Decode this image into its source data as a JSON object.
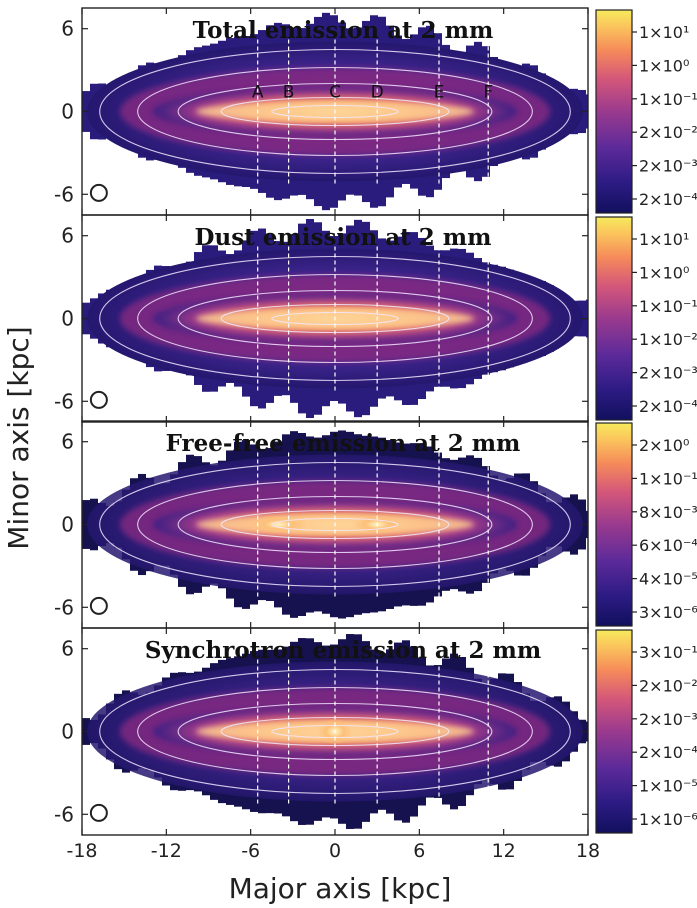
{
  "figure": {
    "xlabel": "Major axis [kpc]",
    "ylabel": "Minor axis [kpc]"
  },
  "chart_data": [
    {
      "type": "heatmap",
      "title": "Total emission at 2 mm",
      "xlim": [
        -18,
        18
      ],
      "ylim": [
        -7.5,
        7.5
      ],
      "x_ticks": [
        "-18",
        "-12",
        "-6",
        "0",
        "6",
        "12",
        "18"
      ],
      "y_ticks": [
        "6",
        "0",
        "-6"
      ],
      "colorbar_ticks": [
        "1×10¹",
        "1×10⁰",
        "1×10⁻¹",
        "2×10⁻²",
        "2×10⁻³",
        "2×10⁻⁴"
      ],
      "vertical_cuts": [
        {
          "label": "A",
          "x": -5.5
        },
        {
          "label": "B",
          "x": -3.3
        },
        {
          "label": "C",
          "x": 0
        },
        {
          "label": "D",
          "x": 3.0
        },
        {
          "label": "E",
          "x": 7.4
        },
        {
          "label": "F",
          "x": 10.9
        }
      ],
      "disk_half_length_kpc": 18,
      "peak_intensity": "central, along major axis",
      "beam_marker": "circle lower-left"
    },
    {
      "type": "heatmap",
      "title": "Dust emission at 2 mm",
      "xlim": [
        -18,
        18
      ],
      "ylim": [
        -7.5,
        7.5
      ],
      "x_ticks": [
        "-18",
        "-12",
        "-6",
        "0",
        "6",
        "12",
        "18"
      ],
      "y_ticks": [
        "6",
        "0",
        "-6"
      ],
      "colorbar_ticks": [
        "1×10¹",
        "1×10⁰",
        "1×10⁻¹",
        "1×10⁻²",
        "2×10⁻³",
        "2×10⁻⁴"
      ],
      "vertical_cuts": [
        {
          "label": "",
          "x": -5.5
        },
        {
          "label": "",
          "x": -3.3
        },
        {
          "label": "",
          "x": 0
        },
        {
          "label": "",
          "x": 3.0
        },
        {
          "label": "",
          "x": 7.4
        },
        {
          "label": "",
          "x": 10.9
        }
      ]
    },
    {
      "type": "heatmap",
      "title": "Free-free emission at 2 mm",
      "xlim": [
        -18,
        18
      ],
      "ylim": [
        -7.5,
        7.5
      ],
      "x_ticks": [
        "-18",
        "-12",
        "-6",
        "0",
        "6",
        "12",
        "18"
      ],
      "y_ticks": [
        "6",
        "0",
        "-6"
      ],
      "colorbar_ticks": [
        "2×10⁰",
        "1×10⁻¹",
        "8×10⁻³",
        "6×10⁻⁴",
        "4×10⁻⁵",
        "3×10⁻⁶"
      ],
      "vertical_cuts": [
        {
          "label": "",
          "x": -5.5
        },
        {
          "label": "",
          "x": -3.3
        },
        {
          "label": "",
          "x": 0
        },
        {
          "label": "",
          "x": 3.0
        },
        {
          "label": "",
          "x": 7.4
        },
        {
          "label": "",
          "x": 10.9
        }
      ]
    },
    {
      "type": "heatmap",
      "title": "Synchrotron emission at 2 mm",
      "xlim": [
        -18,
        18
      ],
      "ylim": [
        -7.5,
        7.5
      ],
      "x_ticks": [
        "-18",
        "-12",
        "-6",
        "0",
        "6",
        "12",
        "18"
      ],
      "y_ticks": [
        "6",
        "0",
        "-6"
      ],
      "colorbar_ticks": [
        "3×10⁻¹",
        "2×10⁻²",
        "2×10⁻³",
        "2×10⁻⁴",
        "1×10⁻⁵",
        "1×10⁻⁶"
      ],
      "vertical_cuts": [
        {
          "label": "",
          "x": -5.5
        },
        {
          "label": "",
          "x": -3.3
        },
        {
          "label": "",
          "x": 0
        },
        {
          "label": "",
          "x": 3.0
        },
        {
          "label": "",
          "x": 7.4
        },
        {
          "label": "",
          "x": 10.9
        }
      ]
    }
  ],
  "colors": {
    "colormap": [
      "#0d0887",
      "#3b0f8f",
      "#5c1a8e",
      "#8c2981",
      "#b73779",
      "#de4968",
      "#f7705c",
      "#fe9f6d",
      "#fecf92",
      "#fcfdbf"
    ],
    "contour": "#f2e6ff",
    "cut_line": "#ffffff",
    "frame": "#222222"
  }
}
